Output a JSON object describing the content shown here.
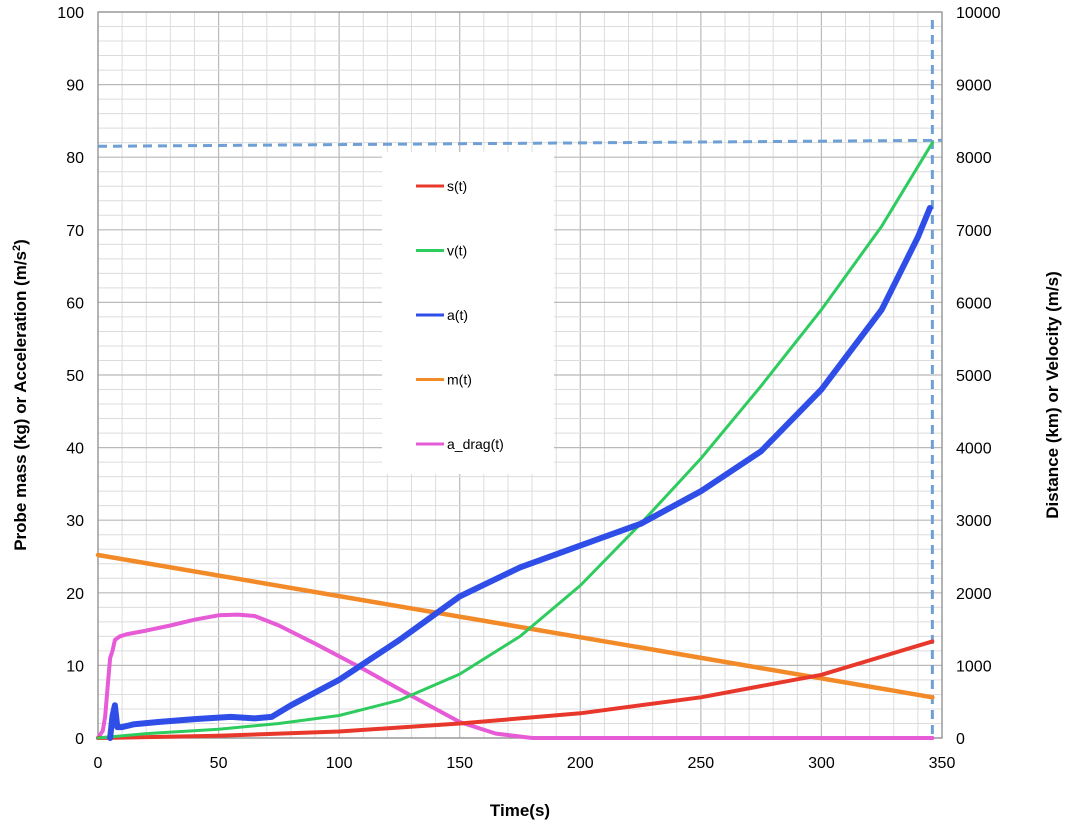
{
  "chart_data": {
    "type": "line",
    "xlabel": "Time(s)",
    "ylabel_left": "Probe mass (kg) or Acceleration (m/s²)",
    "ylabel_right": "Distance (km) or Velocity (m/s)",
    "xlim": [
      0,
      350
    ],
    "ylim_left": [
      0,
      100
    ],
    "ylim_right": [
      0,
      10000
    ],
    "x_ticks": [
      "0",
      "50",
      "100",
      "150",
      "200",
      "250",
      "300",
      "350"
    ],
    "y_left_ticks": [
      "0",
      "10",
      "20",
      "30",
      "40",
      "50",
      "60",
      "70",
      "80",
      "90",
      "100"
    ],
    "y_right_ticks": [
      "0",
      "1000",
      "2000",
      "3000",
      "4000",
      "5000",
      "6000",
      "7000",
      "8000",
      "9000",
      "10000"
    ],
    "grid": true,
    "legend_position": "center",
    "reference_lines": {
      "horizontal_right_axis_value": 8150,
      "vertical_x_value": 346
    },
    "series": [
      {
        "name": "s(t)",
        "color": "#e8382c",
        "axis": "right",
        "points": [
          [
            0,
            0
          ],
          [
            50,
            30
          ],
          [
            100,
            90
          ],
          [
            150,
            200
          ],
          [
            200,
            340
          ],
          [
            250,
            560
          ],
          [
            300,
            870
          ],
          [
            346,
            1330
          ]
        ]
      },
      {
        "name": "v(t)",
        "color": "#2ecc5e",
        "axis": "right",
        "points": [
          [
            0,
            0
          ],
          [
            20,
            60
          ],
          [
            50,
            120
          ],
          [
            75,
            200
          ],
          [
            100,
            310
          ],
          [
            125,
            520
          ],
          [
            150,
            880
          ],
          [
            175,
            1400
          ],
          [
            200,
            2100
          ],
          [
            225,
            2950
          ],
          [
            250,
            3850
          ],
          [
            275,
            4850
          ],
          [
            300,
            5900
          ],
          [
            325,
            7050
          ],
          [
            346,
            8200
          ]
        ]
      },
      {
        "name": "a(t)",
        "color": "#2f4ee8",
        "axis": "left",
        "points": [
          [
            5,
            0
          ],
          [
            6,
            3
          ],
          [
            7,
            4.5
          ],
          [
            8,
            1.5
          ],
          [
            10,
            1.5
          ],
          [
            15,
            1.9
          ],
          [
            25,
            2.2
          ],
          [
            40,
            2.6
          ],
          [
            55,
            2.9
          ],
          [
            65,
            2.7
          ],
          [
            72,
            2.9
          ],
          [
            80,
            4.5
          ],
          [
            100,
            8
          ],
          [
            125,
            13.5
          ],
          [
            150,
            19.5
          ],
          [
            175,
            23.5
          ],
          [
            200,
            26.5
          ],
          [
            225,
            29.5
          ],
          [
            250,
            34
          ],
          [
            275,
            39.5
          ],
          [
            300,
            48
          ],
          [
            325,
            59
          ],
          [
            340,
            69
          ],
          [
            345,
            73
          ]
        ]
      },
      {
        "name": "m(t)",
        "color": "#f28a28",
        "axis": "left",
        "points": [
          [
            0,
            25.2
          ],
          [
            346,
            5.6
          ]
        ]
      },
      {
        "name": "a_drag(t)",
        "color": "#e65bd6",
        "axis": "left",
        "points": [
          [
            0,
            0
          ],
          [
            2,
            1
          ],
          [
            3,
            3
          ],
          [
            4,
            7
          ],
          [
            5,
            11
          ],
          [
            6,
            12
          ],
          [
            7,
            13.5
          ],
          [
            9,
            14
          ],
          [
            12,
            14.3
          ],
          [
            20,
            14.8
          ],
          [
            30,
            15.5
          ],
          [
            40,
            16.3
          ],
          [
            50,
            16.9
          ],
          [
            58,
            17
          ],
          [
            65,
            16.8
          ],
          [
            75,
            15.5
          ],
          [
            90,
            13
          ],
          [
            110,
            9.5
          ],
          [
            130,
            5.8
          ],
          [
            150,
            2.2
          ],
          [
            165,
            0.6
          ],
          [
            180,
            0
          ],
          [
            346,
            0
          ]
        ]
      }
    ]
  }
}
